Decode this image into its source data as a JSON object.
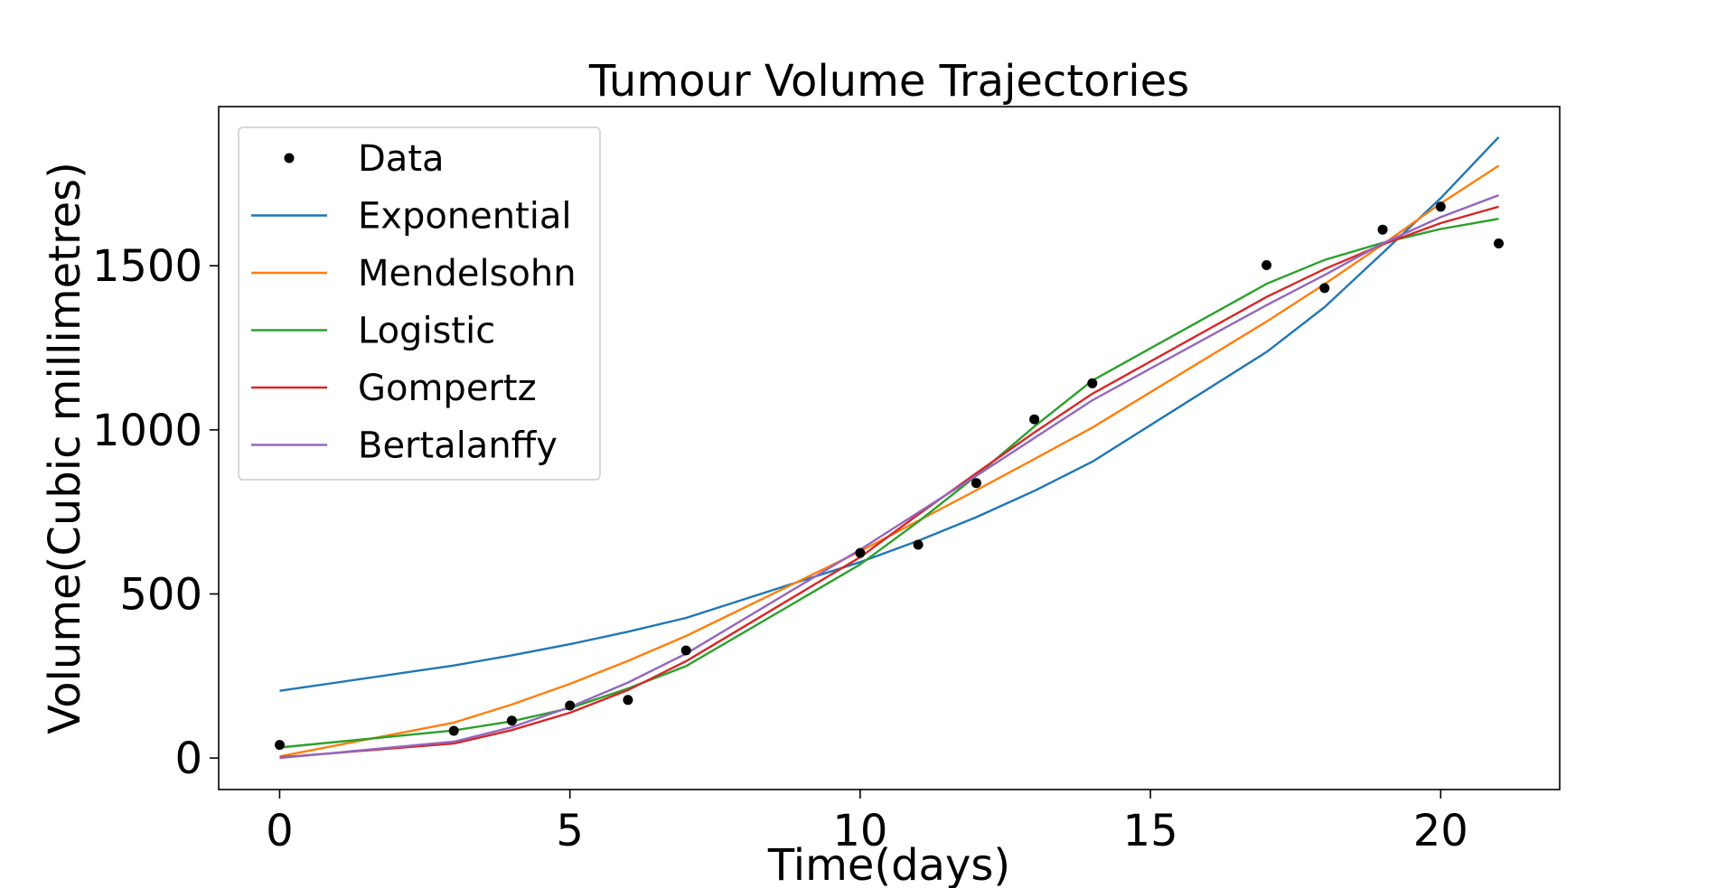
{
  "chart_data": {
    "type": "line",
    "title": "Tumour Volume Trajectories",
    "xlabel": "Time(days)",
    "ylabel": "Volume(Cubic millimetres)",
    "xlim": [
      -1.05,
      22.05
    ],
    "ylim": [
      -96,
      1985
    ],
    "xticks": [
      0,
      5,
      10,
      15,
      20
    ],
    "yticks": [
      0,
      500,
      1000,
      1500
    ],
    "grid": false,
    "legend_position": "top-left",
    "data_points": {
      "name": "Data",
      "color": "#000000",
      "x": [
        0,
        3,
        4,
        5,
        6,
        7,
        10,
        11,
        12,
        13,
        14,
        17,
        18,
        19,
        20,
        21
      ],
      "y": [
        40,
        83,
        114,
        160,
        177,
        328,
        625,
        650,
        838,
        1032,
        1142,
        1502,
        1432,
        1610,
        1680,
        1568
      ]
    },
    "x": [
      0,
      3,
      4,
      5,
      6,
      7,
      10,
      11,
      12,
      13,
      14,
      17,
      18,
      19,
      20,
      21
    ],
    "series": [
      {
        "name": "Exponential",
        "color": "#1f77b4",
        "values": [
          205,
          282,
          313,
          347,
          385,
          427,
          597,
          662,
          734,
          814,
          903,
          1237,
          1374,
          1539,
          1706,
          1892
        ]
      },
      {
        "name": "Mendelsohn",
        "color": "#ff7f0e",
        "values": [
          5,
          108,
          163,
          226,
          296,
          372,
          630,
          723,
          816,
          911,
          1007,
          1330,
          1444,
          1565,
          1690,
          1805
        ]
      },
      {
        "name": "Logistic",
        "color": "#2ca02c",
        "values": [
          32,
          84,
          112,
          152,
          212,
          280,
          590,
          720,
          860,
          1010,
          1150,
          1445,
          1518,
          1570,
          1612,
          1643
        ]
      },
      {
        "name": "Gompertz",
        "color": "#d62728",
        "values": [
          2,
          44,
          85,
          138,
          207,
          295,
          612,
          742,
          868,
          992,
          1110,
          1405,
          1490,
          1565,
          1630,
          1680
        ]
      },
      {
        "name": "Bertalanffy",
        "color": "#9467bd",
        "values": [
          0,
          50,
          94,
          155,
          230,
          318,
          635,
          748,
          860,
          975,
          1090,
          1380,
          1472,
          1568,
          1648,
          1715
        ]
      }
    ]
  }
}
